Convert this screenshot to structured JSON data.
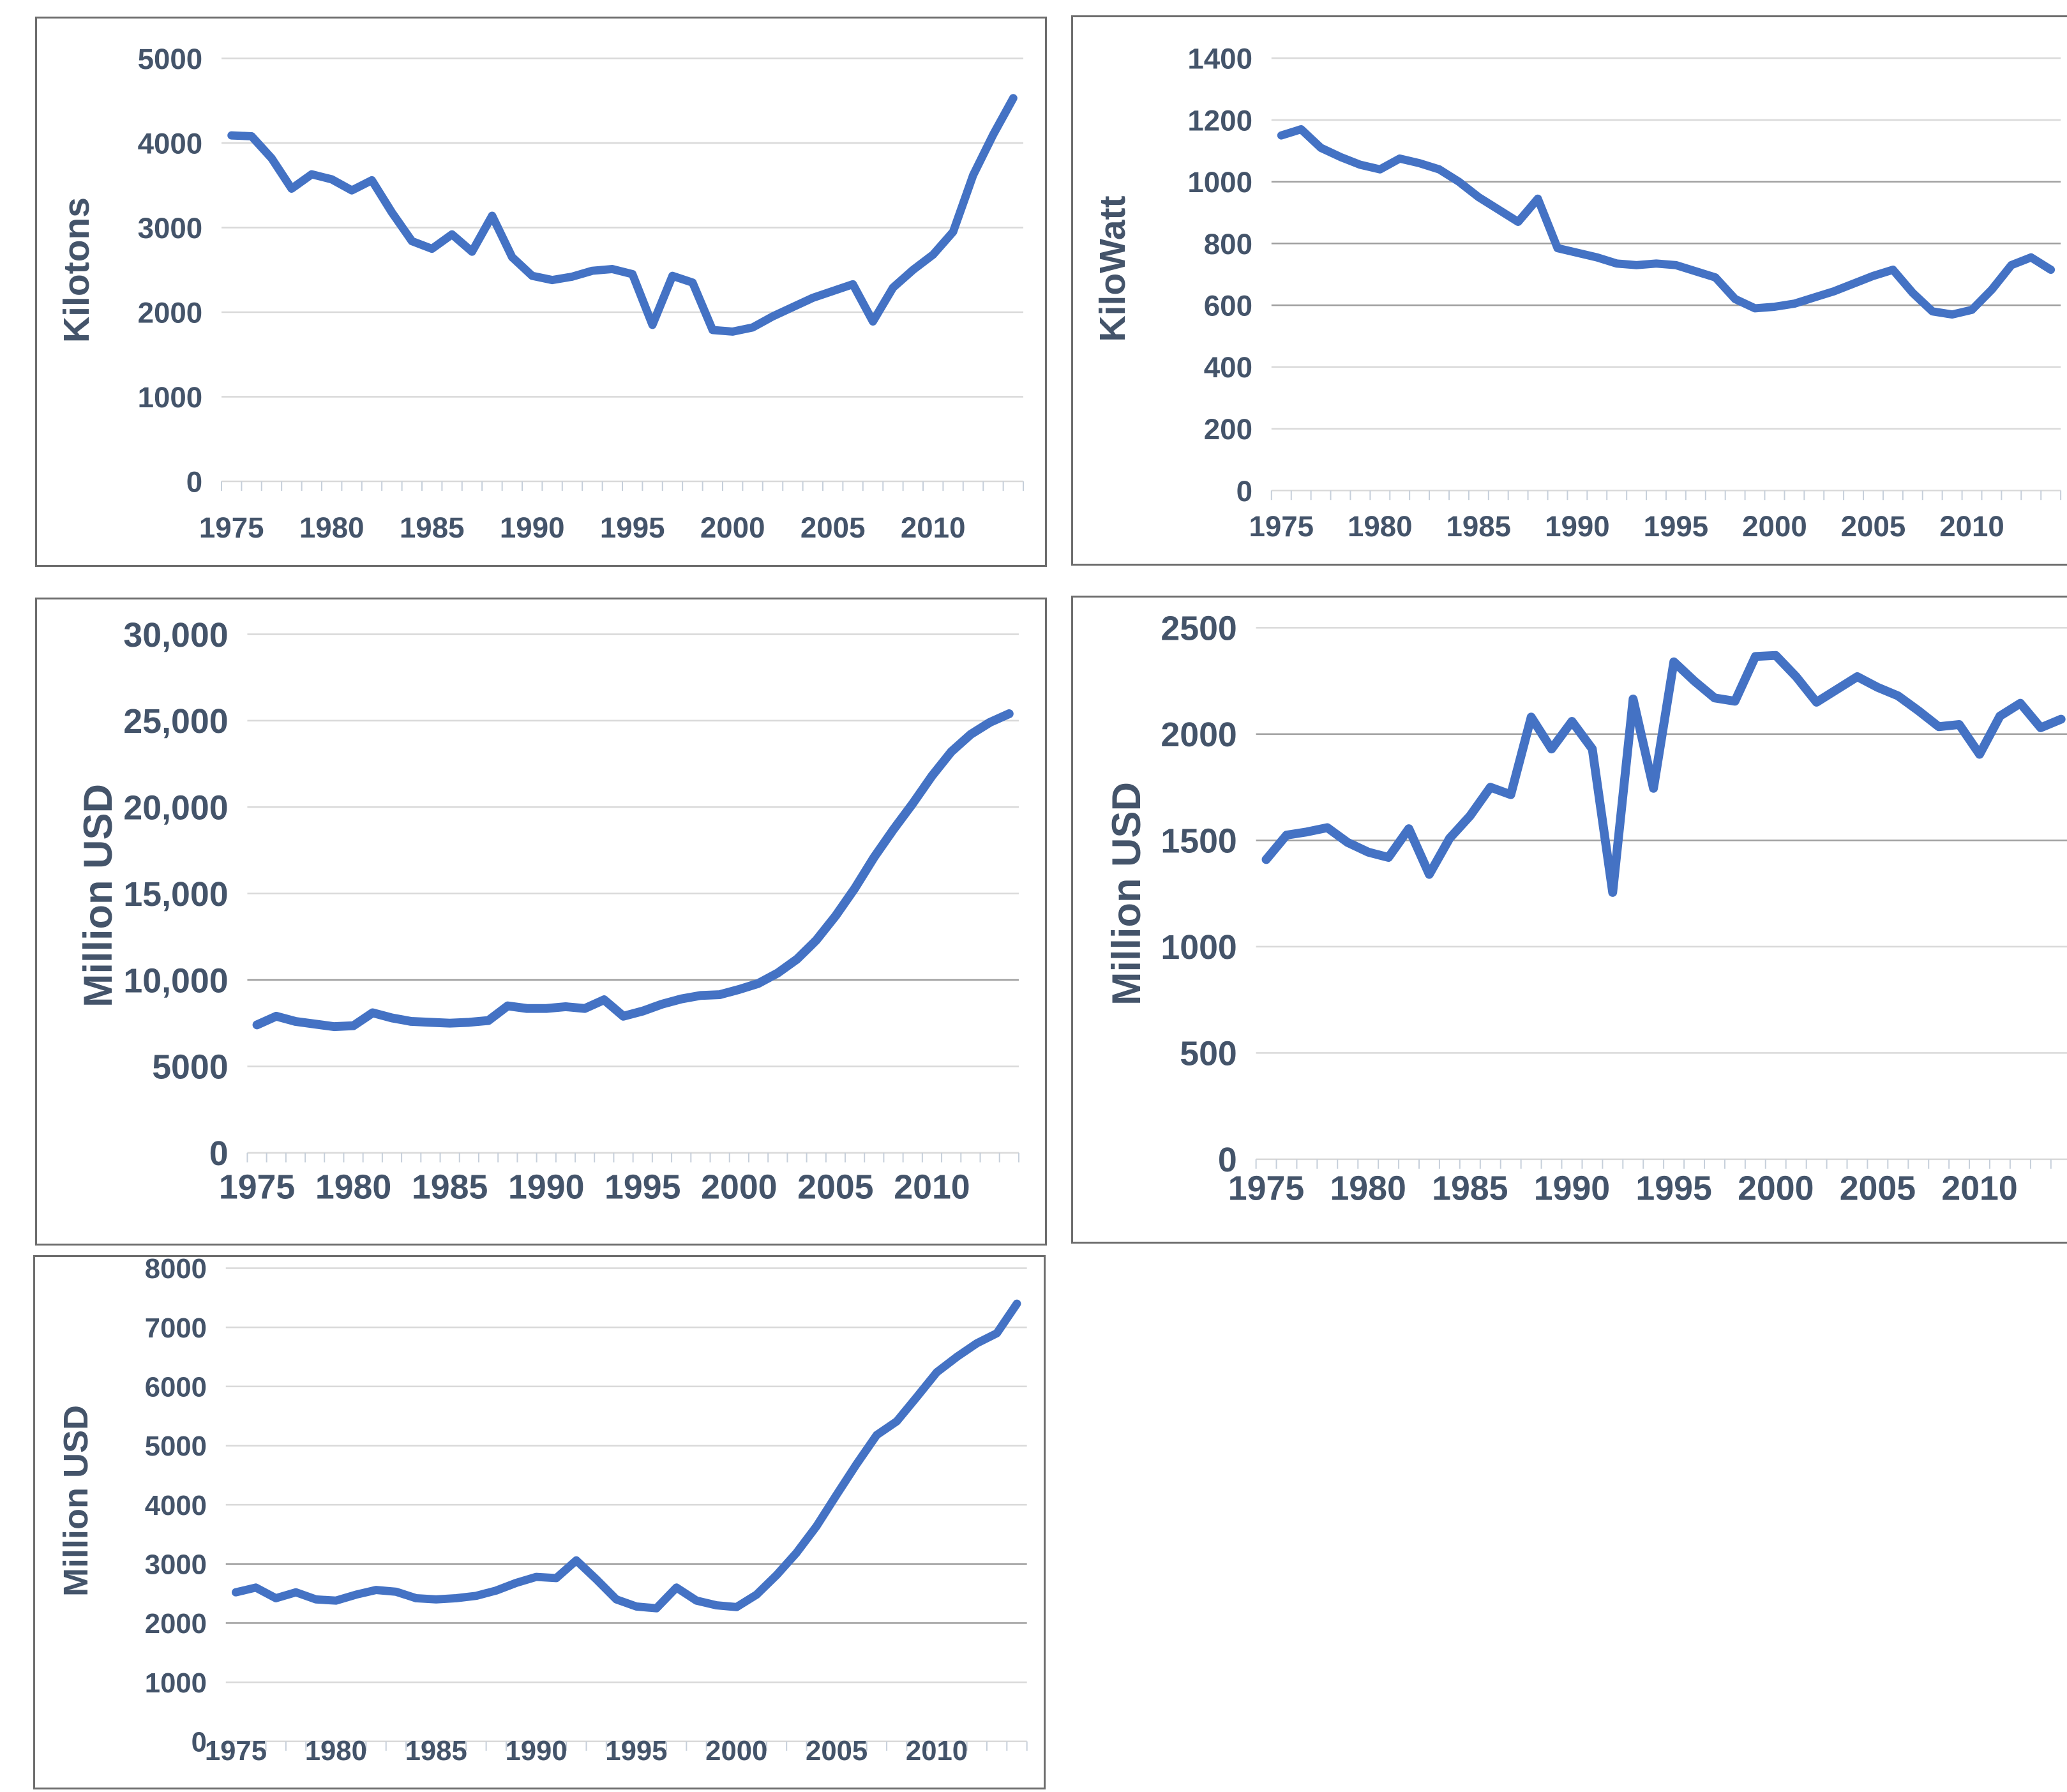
{
  "colors": {
    "line": "#4472C4",
    "label": "#44546A",
    "gridline": "#D9D9D9",
    "gridline_dark": "#9E9E9E",
    "tick": "#C6CFDA",
    "panel_border": "#6D6D6D",
    "background": "#FFFFFF"
  },
  "chart_data": [
    {
      "type": "line",
      "y_axis_title": "Kilotons",
      "ylim": [
        0,
        5000
      ],
      "ytick_step": 1000,
      "ytick_labels": [
        "5000",
        "4000",
        "3000",
        "2000",
        "1000",
        "0"
      ],
      "xtick_labels": [
        "1975",
        "1980",
        "1985",
        "1990",
        "1995",
        "2000",
        "2005",
        "2010"
      ],
      "grid": true,
      "legend": "none",
      "line_color": "#4472C4",
      "emphasized_gridlines": [],
      "years": [
        1975,
        1976,
        1977,
        1978,
        1979,
        1980,
        1981,
        1982,
        1983,
        1984,
        1985,
        1986,
        1987,
        1988,
        1989,
        1990,
        1991,
        1992,
        1993,
        1994,
        1995,
        1996,
        1997,
        1998,
        1999,
        2000,
        2001,
        2002,
        2003,
        2004,
        2005,
        2006,
        2007,
        2008,
        2009,
        2010,
        2011,
        2012,
        2013,
        2014
      ],
      "values": [
        4090,
        4080,
        3820,
        3460,
        3630,
        3570,
        3440,
        3560,
        3180,
        2840,
        2750,
        2920,
        2715,
        3140,
        2650,
        2430,
        2380,
        2420,
        2490,
        2510,
        2450,
        1850,
        2430,
        2350,
        1790,
        1770,
        1820,
        1950,
        2060,
        2170,
        2250,
        2330,
        1890,
        2290,
        2500,
        2680,
        2950,
        3620,
        4100,
        4530
      ]
    },
    {
      "type": "line",
      "y_axis_title": "KiloWatt",
      "ylim": [
        0,
        1400
      ],
      "ytick_step": 200,
      "ytick_labels": [
        "1400",
        "1200",
        "1000",
        "800",
        "600",
        "400",
        "200",
        "0"
      ],
      "xtick_labels": [
        "1975",
        "1980",
        "1985",
        "1990",
        "1995",
        "2000",
        "2005",
        "2010"
      ],
      "grid": true,
      "legend": "none",
      "line_color": "#4472C4",
      "emphasized_gridlines": [
        1000,
        800,
        600
      ],
      "years": [
        1975,
        1976,
        1977,
        1978,
        1979,
        1980,
        1981,
        1982,
        1983,
        1984,
        1985,
        1986,
        1987,
        1988,
        1989,
        1990,
        1991,
        1992,
        1993,
        1994,
        1995,
        1996,
        1997,
        1998,
        1999,
        2000,
        2001,
        2002,
        2003,
        2004,
        2005,
        2006,
        2007,
        2008,
        2009,
        2010,
        2011,
        2012,
        2013,
        2014
      ],
      "values": [
        1150,
        1170,
        1110,
        1080,
        1055,
        1040,
        1075,
        1060,
        1040,
        1000,
        950,
        910,
        870,
        945,
        785,
        770,
        755,
        735,
        730,
        735,
        730,
        710,
        690,
        620,
        590,
        595,
        605,
        625,
        645,
        670,
        695,
        715,
        640,
        580,
        570,
        585,
        650,
        730,
        755,
        715
      ]
    },
    {
      "type": "line",
      "y_axis_title": "Million USD",
      "ylim": [
        0,
        30000
      ],
      "ytick_step": 5000,
      "ytick_labels": [
        "30,000",
        "25,000",
        "20,000",
        "15,000",
        "10,000",
        "5000",
        "0"
      ],
      "xtick_labels": [
        "1975",
        "1980",
        "1985",
        "1990",
        "1995",
        "2000",
        "2005",
        "2010"
      ],
      "grid": true,
      "legend": "none",
      "line_color": "#4472C4",
      "emphasized_gridlines": [
        10000
      ],
      "years": [
        1975,
        1976,
        1977,
        1978,
        1979,
        1980,
        1981,
        1982,
        1983,
        1984,
        1985,
        1986,
        1987,
        1988,
        1989,
        1990,
        1991,
        1992,
        1993,
        1994,
        1995,
        1996,
        1997,
        1998,
        1999,
        2000,
        2001,
        2002,
        2003,
        2004,
        2005,
        2006,
        2007,
        2008,
        2009,
        2010,
        2011,
        2012,
        2013,
        2014
      ],
      "values": [
        7400,
        7900,
        7600,
        7450,
        7300,
        7350,
        8100,
        7800,
        7600,
        7550,
        7500,
        7550,
        7650,
        8500,
        8350,
        8350,
        8450,
        8350,
        8850,
        7900,
        8200,
        8600,
        8900,
        9100,
        9150,
        9450,
        9800,
        10400,
        11200,
        12300,
        13700,
        15300,
        17100,
        18700,
        20200,
        21800,
        23200,
        24200,
        24900,
        25400
      ]
    },
    {
      "type": "line",
      "y_axis_title": "Million USD",
      "ylim": [
        0,
        2500
      ],
      "ytick_step": 500,
      "ytick_labels": [
        "2500",
        "2000",
        "1500",
        "1000",
        "500",
        "0"
      ],
      "xtick_labels": [
        "1975",
        "1980",
        "1985",
        "1990",
        "1995",
        "2000",
        "2005",
        "2010"
      ],
      "grid": true,
      "legend": "none",
      "line_color": "#4472C4",
      "emphasized_gridlines": [
        2000,
        1500
      ],
      "years": [
        1975,
        1976,
        1977,
        1978,
        1979,
        1980,
        1981,
        1982,
        1983,
        1984,
        1985,
        1986,
        1987,
        1988,
        1989,
        1990,
        1991,
        1992,
        1993,
        1994,
        1995,
        1996,
        1997,
        1998,
        1999,
        2000,
        2001,
        2002,
        2003,
        2004,
        2005,
        2006,
        2007,
        2008,
        2009,
        2010,
        2011,
        2012,
        2013,
        2014
      ],
      "values": [
        1410,
        1525,
        1540,
        1560,
        1490,
        1445,
        1420,
        1555,
        1340,
        1510,
        1615,
        1750,
        1715,
        2080,
        1930,
        2060,
        1930,
        1255,
        2165,
        1745,
        2340,
        2250,
        2170,
        2155,
        2365,
        2370,
        2270,
        2150,
        2210,
        2270,
        2220,
        2180,
        2110,
        2035,
        2045,
        1905,
        2085,
        2145,
        2030,
        2070
      ]
    },
    {
      "type": "line",
      "y_axis_title": "Million USD",
      "ylim": [
        0,
        8000
      ],
      "ytick_step": 1000,
      "ytick_labels": [
        "8000",
        "7000",
        "6000",
        "5000",
        "4000",
        "3000",
        "2000",
        "1000",
        "0"
      ],
      "xtick_labels": [
        "1975",
        "1980",
        "1985",
        "1990",
        "1995",
        "2000",
        "2005",
        "2010"
      ],
      "grid": true,
      "legend": "none",
      "line_color": "#4472C4",
      "emphasized_gridlines": [
        3000,
        2000
      ],
      "years": [
        1975,
        1976,
        1977,
        1978,
        1979,
        1980,
        1981,
        1982,
        1983,
        1984,
        1985,
        1986,
        1987,
        1988,
        1989,
        1990,
        1991,
        1992,
        1993,
        1994,
        1995,
        1996,
        1997,
        1998,
        1999,
        2000,
        2001,
        2002,
        2003,
        2004,
        2005,
        2006,
        2007,
        2008,
        2009,
        2010,
        2011,
        2012,
        2013,
        2014
      ],
      "values": [
        2520,
        2600,
        2420,
        2520,
        2400,
        2380,
        2480,
        2560,
        2530,
        2420,
        2400,
        2420,
        2460,
        2550,
        2680,
        2780,
        2760,
        3060,
        2740,
        2400,
        2280,
        2250,
        2600,
        2380,
        2300,
        2270,
        2480,
        2810,
        3190,
        3640,
        4170,
        4690,
        5180,
        5410,
        5820,
        6240,
        6500,
        6730,
        6900,
        7400
      ]
    }
  ]
}
